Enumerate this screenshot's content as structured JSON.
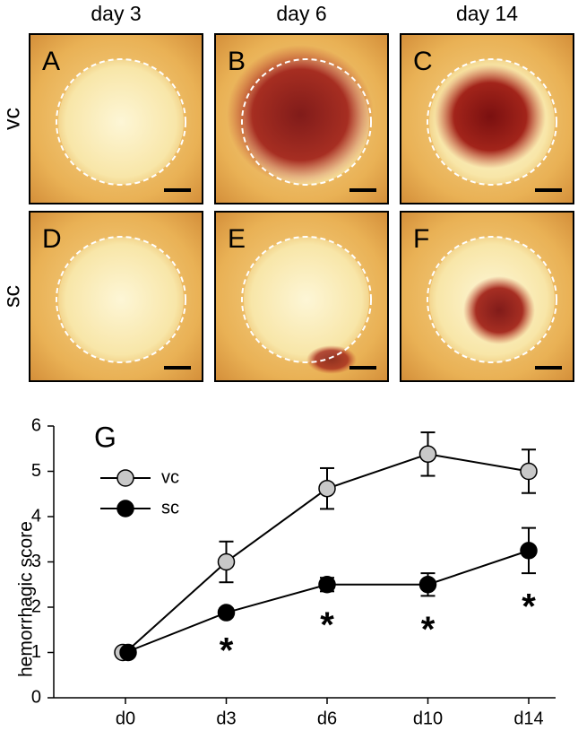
{
  "figure": {
    "columns": [
      "day 3",
      "day 6",
      "day 14"
    ],
    "rows": [
      "vc",
      "sc"
    ],
    "panels": [
      "A",
      "B",
      "C",
      "D",
      "E",
      "F"
    ]
  },
  "chart_data": {
    "type": "line",
    "label": "G",
    "ylabel": "hemorrhagic score",
    "categories": [
      "d0",
      "d3",
      "d6",
      "d10",
      "d14"
    ],
    "series": [
      {
        "name": "vc",
        "color": "#c8c8c8",
        "values": [
          1,
          3,
          4.62,
          5.38,
          5
        ],
        "errors": [
          0,
          0.45,
          0.45,
          0.48,
          0.48
        ]
      },
      {
        "name": "sc",
        "color": "#000000",
        "values": [
          1,
          1.88,
          2.5,
          2.5,
          3.25
        ],
        "errors": [
          0,
          0.1,
          0.15,
          0.25,
          0.5
        ]
      }
    ],
    "annotations": [
      null,
      "*",
      "*",
      "*",
      "*"
    ],
    "ylim": [
      0,
      6
    ],
    "yticks": [
      0,
      1,
      2,
      3,
      4,
      5,
      6
    ],
    "legend": "upper left"
  }
}
